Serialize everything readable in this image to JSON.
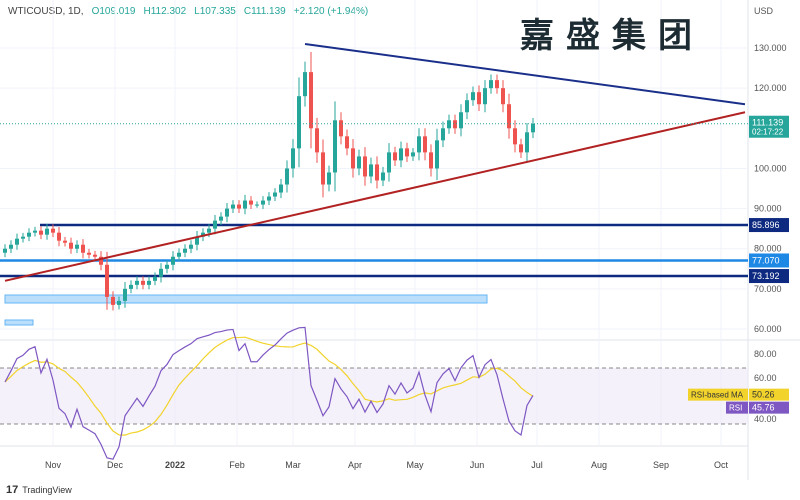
{
  "header": {
    "symbol": "WTICOUSD, 1D,",
    "open": "O109.019",
    "high": "H112.302",
    "low": "L107.335",
    "close": "C111.139",
    "change": "+2.120 (+1.94%)"
  },
  "watermark": "嘉盛集团",
  "currency": "USD",
  "footer": "TradingView",
  "colors": {
    "up": "#26a69a",
    "down": "#ef5350",
    "trend_upper": "#1a2f8a",
    "trend_lower": "#b22222",
    "level_dark": "#0d2a80",
    "level_light": "#1e88e5",
    "rsi": "#7e57c2",
    "rsi_ma": "#f2d32b"
  },
  "chart_data": {
    "type": "candlestick",
    "ylim": [
      57,
      137
    ],
    "yticks": [
      "130.000",
      "120.000",
      "100.000",
      "90.000",
      "80.000",
      "70.000",
      "60.000"
    ],
    "ytick_values": [
      130,
      120,
      100,
      90,
      80,
      70,
      60
    ],
    "xticks": [
      "Nov",
      "Dec",
      "2022",
      "Feb",
      "Mar",
      "Apr",
      "May",
      "Jun",
      "Jul",
      "Aug",
      "Sep",
      "Oct"
    ],
    "xtick_days": [
      24,
      55,
      85,
      116,
      144,
      175,
      205,
      236,
      266,
      297,
      328,
      358
    ],
    "step_days": 3,
    "closes": [
      80,
      81,
      82.5,
      83,
      84,
      84.5,
      83.5,
      85,
      84,
      82,
      81.5,
      80,
      81,
      79,
      78.5,
      78,
      76,
      68,
      66,
      67,
      70,
      71,
      72,
      71,
      72,
      73,
      75,
      76,
      78,
      79,
      80,
      81,
      83,
      84,
      85,
      87,
      88,
      90,
      91,
      90,
      92,
      91,
      91,
      92,
      93,
      94,
      96,
      100,
      105,
      118,
      124,
      110,
      104,
      96,
      99,
      112,
      108,
      105,
      100,
      103,
      98,
      101,
      97,
      99,
      104,
      102,
      105,
      103,
      104,
      108,
      104,
      100,
      107,
      110,
      112,
      110,
      114,
      117,
      119,
      116,
      120,
      122,
      120,
      116,
      110,
      106,
      104,
      109,
      111.139
    ],
    "levels": [
      {
        "label": "85.896",
        "value": 85.896
      },
      {
        "label": "77.070",
        "value": 77.07
      },
      {
        "label": "73.192",
        "value": 73.192
      }
    ],
    "last_price": {
      "label": "111.139",
      "countdown": "02:17:22"
    },
    "trendlines": [
      {
        "name": "upper",
        "from": [
          150,
          131
        ],
        "to": [
          370,
          116
        ]
      },
      {
        "name": "lower",
        "from": [
          0,
          72
        ],
        "to": [
          370,
          114
        ]
      }
    ],
    "rsi": {
      "ylim": [
        20,
        90
      ],
      "yticks": [
        "80.00",
        "60.00",
        "40.00"
      ],
      "ytick_values": [
        80,
        60,
        40
      ],
      "bands": [
        70,
        30
      ],
      "value_label": "45.76",
      "ma_label": "50.26",
      "rsi_name": "RSI",
      "ma_name": "RSI-based MA"
    }
  }
}
